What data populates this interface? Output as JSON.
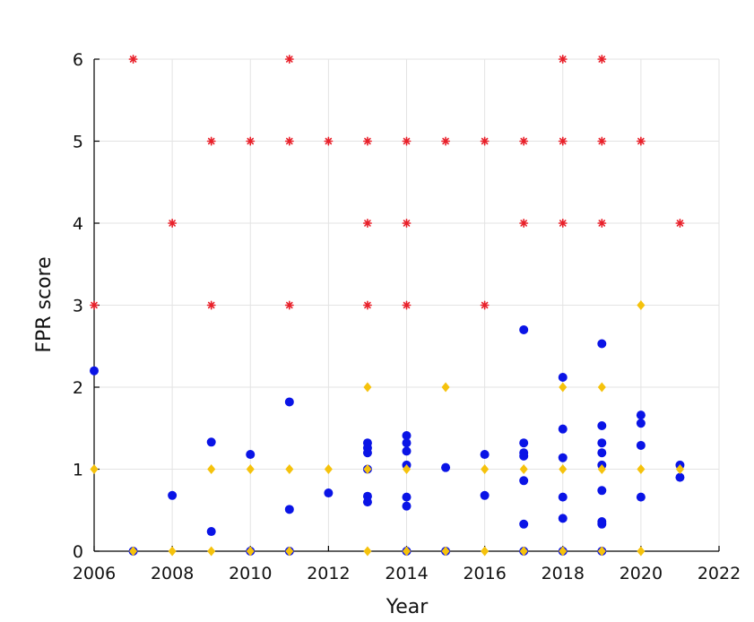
{
  "chart_data": {
    "type": "scatter",
    "title": "",
    "xlabel": "Year",
    "ylabel": "FPR score",
    "xlim": [
      2006,
      2022
    ],
    "ylim": [
      0,
      6
    ],
    "xticks": [
      "2006",
      "2008",
      "2010",
      "2012",
      "2014",
      "2016",
      "2018",
      "2020",
      "2022"
    ],
    "yticks": [
      "0",
      "1",
      "2",
      "3",
      "4",
      "5",
      "6"
    ],
    "grid": true,
    "legend": "none",
    "colors": {
      "star": "#e8202a",
      "circle": "#0a14e6",
      "diamond": "#f5c20c"
    },
    "series": [
      {
        "marker": "star",
        "points": [
          [
            2006,
            3
          ],
          [
            2007,
            6
          ],
          [
            2008,
            4
          ],
          [
            2009,
            5
          ],
          [
            2009,
            3
          ],
          [
            2010,
            5
          ],
          [
            2011,
            6
          ],
          [
            2011,
            5
          ],
          [
            2011,
            3
          ],
          [
            2012,
            5
          ],
          [
            2013,
            5
          ],
          [
            2013,
            4
          ],
          [
            2013,
            3
          ],
          [
            2014,
            5
          ],
          [
            2014,
            4
          ],
          [
            2014,
            3
          ],
          [
            2015,
            5
          ],
          [
            2016,
            5
          ],
          [
            2016,
            3
          ],
          [
            2017,
            5
          ],
          [
            2017,
            4
          ],
          [
            2018,
            6
          ],
          [
            2018,
            5
          ],
          [
            2018,
            4
          ],
          [
            2019,
            6
          ],
          [
            2019,
            5
          ],
          [
            2019,
            4
          ],
          [
            2020,
            5
          ],
          [
            2021,
            4
          ]
        ]
      },
      {
        "marker": "circle",
        "points": [
          [
            2006,
            2.2
          ],
          [
            2007,
            0
          ],
          [
            2008,
            0.68
          ],
          [
            2009,
            1.33
          ],
          [
            2009,
            0.24
          ],
          [
            2010,
            1.18
          ],
          [
            2010,
            0
          ],
          [
            2011,
            1.82
          ],
          [
            2011,
            0.51
          ],
          [
            2011,
            0
          ],
          [
            2012,
            0.71
          ],
          [
            2013,
            1.32
          ],
          [
            2013,
            1.26
          ],
          [
            2013,
            1.2
          ],
          [
            2013,
            1.0
          ],
          [
            2013,
            0.67
          ],
          [
            2013,
            0.6
          ],
          [
            2014,
            1.41
          ],
          [
            2014,
            1.32
          ],
          [
            2014,
            1.22
          ],
          [
            2014,
            1.05
          ],
          [
            2014,
            0.66
          ],
          [
            2014,
            0.55
          ],
          [
            2014,
            0
          ],
          [
            2015,
            1.02
          ],
          [
            2015,
            0
          ],
          [
            2016,
            1.18
          ],
          [
            2016,
            0.68
          ],
          [
            2017,
            2.7
          ],
          [
            2017,
            1.32
          ],
          [
            2017,
            1.2
          ],
          [
            2017,
            1.16
          ],
          [
            2017,
            0.86
          ],
          [
            2017,
            0.33
          ],
          [
            2017,
            0
          ],
          [
            2018,
            2.12
          ],
          [
            2018,
            1.49
          ],
          [
            2018,
            1.14
          ],
          [
            2018,
            0.66
          ],
          [
            2018,
            0.4
          ],
          [
            2018,
            0
          ],
          [
            2019,
            2.53
          ],
          [
            2019,
            1.53
          ],
          [
            2019,
            1.32
          ],
          [
            2019,
            1.2
          ],
          [
            2019,
            1.05
          ],
          [
            2019,
            0.74
          ],
          [
            2019,
            0.36
          ],
          [
            2019,
            0.33
          ],
          [
            2019,
            0
          ],
          [
            2020,
            1.66
          ],
          [
            2020,
            1.56
          ],
          [
            2020,
            1.29
          ],
          [
            2020,
            0.66
          ],
          [
            2021,
            1.05
          ],
          [
            2021,
            0.9
          ]
        ]
      },
      {
        "marker": "diamond",
        "points": [
          [
            2006,
            1
          ],
          [
            2007,
            0
          ],
          [
            2008,
            0
          ],
          [
            2009,
            1
          ],
          [
            2009,
            0
          ],
          [
            2010,
            1
          ],
          [
            2010,
            0
          ],
          [
            2011,
            1
          ],
          [
            2011,
            0
          ],
          [
            2012,
            1
          ],
          [
            2013,
            2
          ],
          [
            2013,
            1
          ],
          [
            2013,
            0
          ],
          [
            2014,
            1
          ],
          [
            2014,
            0
          ],
          [
            2015,
            2
          ],
          [
            2015,
            0
          ],
          [
            2016,
            1
          ],
          [
            2016,
            0
          ],
          [
            2017,
            1
          ],
          [
            2017,
            0
          ],
          [
            2018,
            2
          ],
          [
            2018,
            1
          ],
          [
            2018,
            0
          ],
          [
            2019,
            2
          ],
          [
            2019,
            1
          ],
          [
            2019,
            0
          ],
          [
            2020,
            3
          ],
          [
            2020,
            1
          ],
          [
            2020,
            0
          ],
          [
            2021,
            1
          ]
        ]
      }
    ]
  }
}
